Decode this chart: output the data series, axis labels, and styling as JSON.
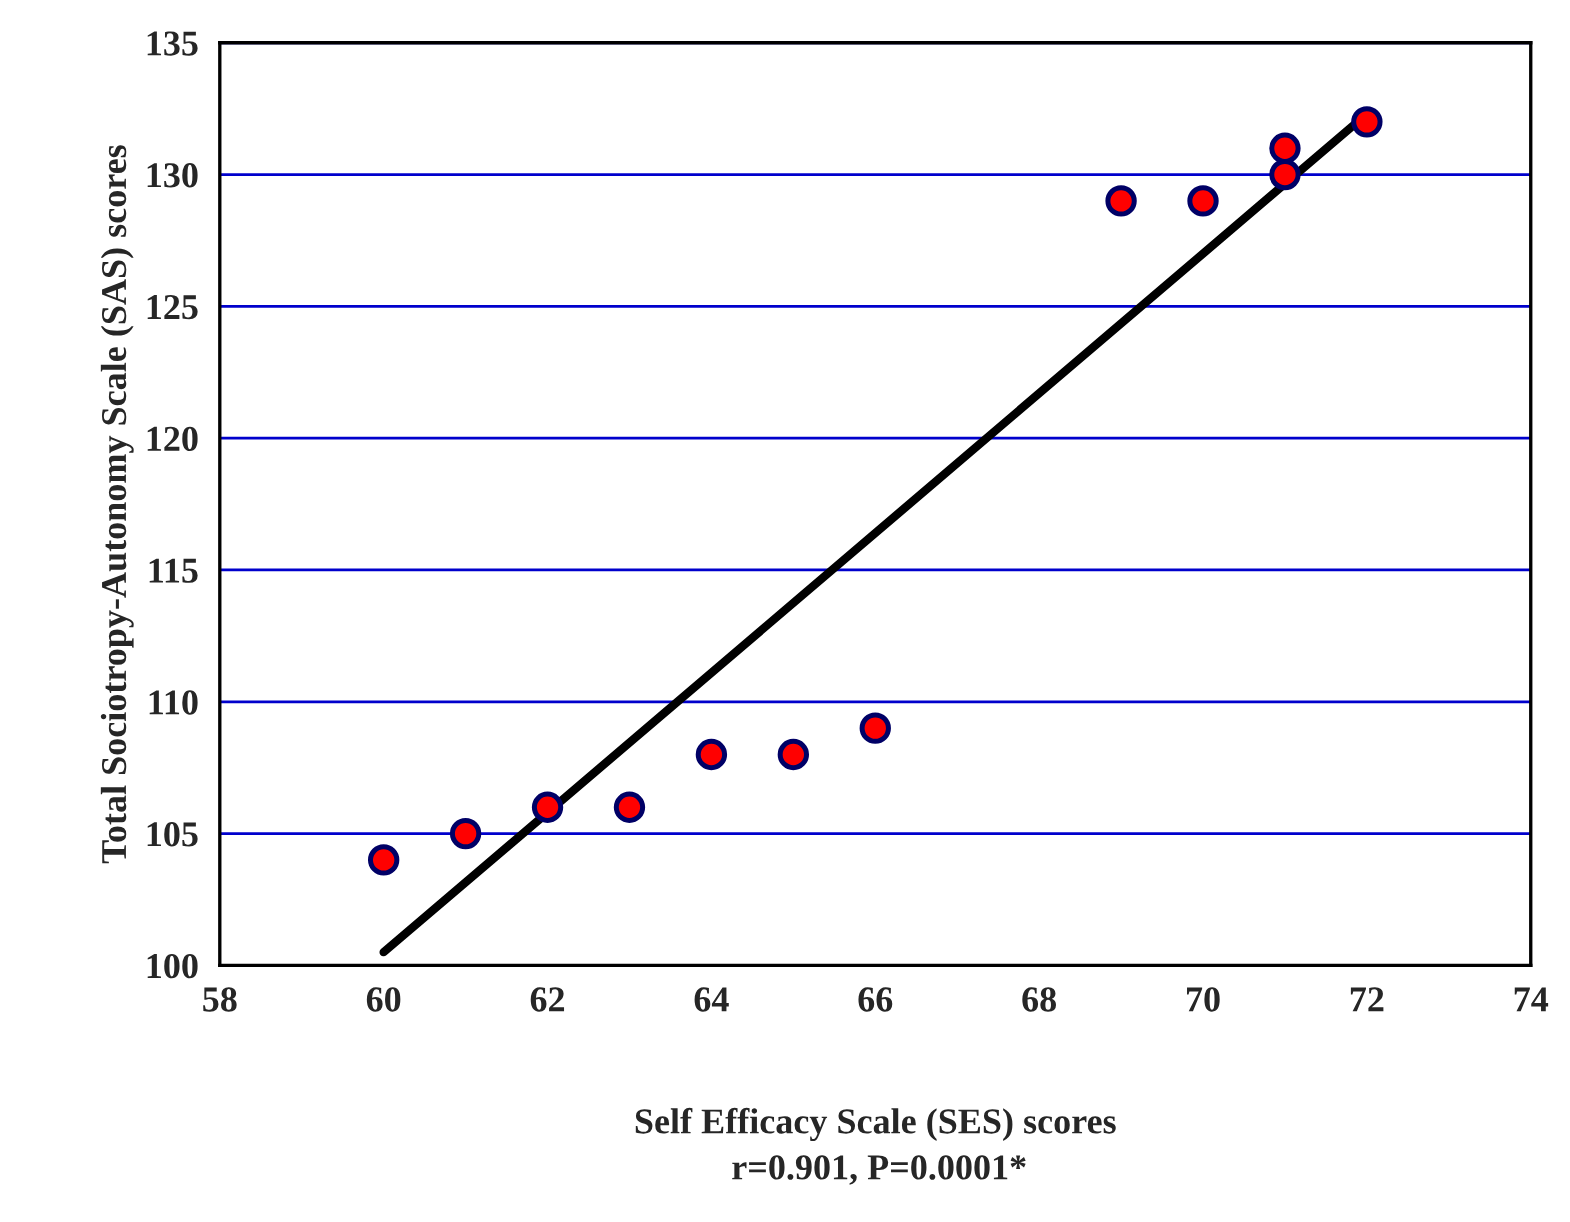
{
  "chart_data": {
    "type": "scatter",
    "xlabel": "Self Efficacy Scale (SES) scores",
    "ylabel": "Total Sociotropy-Autonomy Scale (SAS) scores",
    "annotations": [
      "r=0.901, P=0.0001*"
    ],
    "series": [
      {
        "marker": "circle",
        "color": "#ff0000",
        "x": [
          60,
          61,
          62,
          63,
          64,
          65,
          66,
          69,
          70,
          71,
          71,
          72
        ],
        "values": [
          104,
          105,
          106,
          106,
          108,
          108,
          109,
          129,
          129,
          131,
          130,
          132
        ]
      },
      {
        "type": "line",
        "marker": "none",
        "color": "#000000",
        "x": [
          60,
          72
        ],
        "values": [
          100.5,
          132.3
        ]
      }
    ],
    "xlim": [
      58,
      74
    ],
    "xticks": [
      58,
      60,
      62,
      64,
      66,
      68,
      70,
      72,
      74
    ],
    "ylim": [
      100,
      135
    ],
    "yticks": [
      100,
      105,
      110,
      115,
      120,
      125,
      130,
      135
    ],
    "grid": "y"
  }
}
